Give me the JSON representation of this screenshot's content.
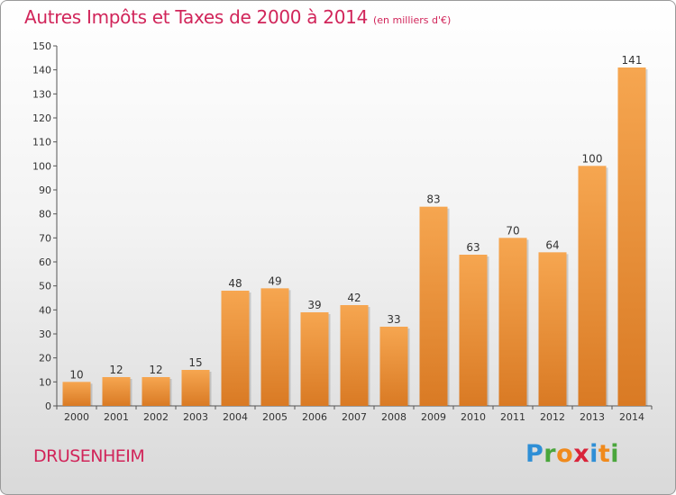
{
  "title": "Autres Impôts et Taxes de 2000 à 2014",
  "unit": "(en milliers d'€)",
  "city": "DRUSENHEIM",
  "brand": {
    "letters": [
      "P",
      "r",
      "o",
      "x",
      "i",
      "t",
      "i"
    ],
    "colors": [
      "#2f8fd6",
      "#4aa63c",
      "#f08a1c",
      "#d9243a",
      "#2f8fd6",
      "#f08a1c",
      "#4aa63c"
    ]
  },
  "colors": {
    "bar_light": "#f6a650",
    "bar_dark": "#d97a24",
    "title": "#d1255a"
  },
  "chart_data": {
    "type": "bar",
    "categories": [
      "2000",
      "2001",
      "2002",
      "2003",
      "2004",
      "2005",
      "2006",
      "2007",
      "2008",
      "2009",
      "2010",
      "2011",
      "2012",
      "2013",
      "2014"
    ],
    "values": [
      10,
      12,
      12,
      15,
      48,
      49,
      39,
      42,
      33,
      83,
      63,
      70,
      64,
      100,
      141
    ],
    "ylim": [
      0,
      150
    ],
    "yticks": [
      0,
      10,
      20,
      30,
      40,
      50,
      60,
      70,
      80,
      90,
      100,
      110,
      120,
      130,
      140,
      150
    ],
    "grid": false,
    "legend": "none"
  }
}
